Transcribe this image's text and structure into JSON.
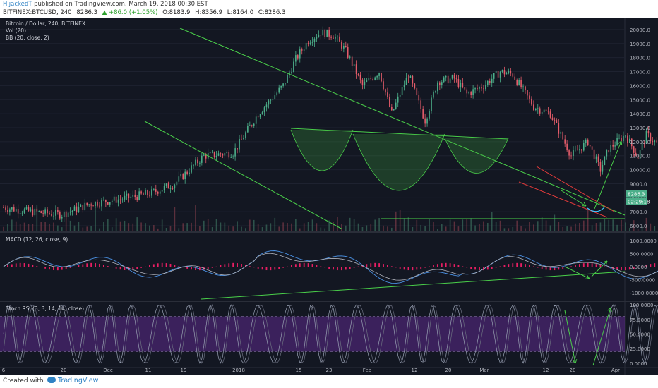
{
  "header": {
    "author": "HijackedT",
    "published": "published on TradingView.com, March 19, 2018 00:30 EST",
    "symbol": "BITFINEX:BTCUSD, 240",
    "price": "8286.3",
    "change": "▲ +86.0 (+1.05%)",
    "open": "O:8183.9",
    "high": "H:8356.9",
    "low": "L:8164.0",
    "close": "C:8286.3"
  },
  "footer": {
    "created_with": "Created with",
    "brand": "TradingView"
  },
  "chart_data": {
    "type": "line",
    "panes": [
      {
        "name": "price",
        "legend": [
          "Bitcoin / Dollar, 240, BITFINEX",
          "Vol (20)",
          "BB (20, close, 2)"
        ],
        "ylim": [
          5600,
          20600
        ],
        "y_ticks": [
          "20000.0",
          "19000.0",
          "18000.0",
          "17000.0",
          "16000.0",
          "15000.0",
          "14000.0",
          "13000.0",
          "12000.0",
          "11000.0",
          "10000.0",
          "9000.0",
          "8000.0",
          "7000.0",
          "6000.0"
        ],
        "series": [
          {
            "color": "#e45c6a",
            "x": [
              0,
              7,
              14,
              21,
              28,
              35,
              41,
              48,
              55,
              61,
              67,
              70,
              73,
              76,
              79,
              82,
              86,
              90,
              93,
              97,
              101,
              104,
              108,
              111,
              115,
              119,
              122,
              127,
              131,
              136,
              140,
              143,
              145,
              149,
              152,
              154,
              158,
              162,
              166,
              170,
              175,
              180,
              184,
              189,
              194,
              199,
              203,
              206,
              210
            ],
            "y": [
              7300,
              7000,
              6800,
              7600,
              7900,
              8300,
              9000,
              11000,
              11200,
              14000,
              16000,
              17900,
              19200,
              19800,
              19600,
              18500,
              16000,
              17000,
              14000,
              16800,
              13500,
              16300,
              16500,
              15400,
              16000,
              17000,
              16800,
              14500,
              14000,
              11000,
              12000,
              10000,
              11500,
              12500,
              10900,
              12500,
              11500,
              11000,
              9700,
              8000,
              6500,
              6000,
              7500,
              8900,
              8400,
              9000,
              10000,
              11300,
              11800
            ]
          }
        ],
        "price_badges": [
          "8286.3",
          "02:29:18"
        ]
      },
      {
        "name": "macd",
        "legend": [
          "MACD (12, 26, close, 9)"
        ],
        "ylim": [
          -1300,
          1300
        ],
        "y_ticks": [
          "1000.0000",
          "500.0000",
          "0.0000",
          "-500.0000",
          "-1000.0000"
        ]
      },
      {
        "name": "stoch_rsi",
        "legend": [
          "Stoch RSI (3, 3, 14, 14, close)"
        ],
        "ylim": [
          -5,
          105
        ],
        "y_ticks": [
          "100.0000",
          "75.0000",
          "50.0000",
          "25.0000",
          "0.0000"
        ]
      }
    ],
    "x_ticks": [
      "6",
      "20",
      "Dec",
      "11",
      "19",
      "2018",
      "15",
      "23",
      "Feb",
      "12",
      "20",
      "Mar",
      "12",
      "20",
      "Apr"
    ],
    "colors": {
      "background": "#131722",
      "up": "#4caf8a",
      "down": "#e45c6a",
      "trendline": "#4ad04a",
      "macd_hist": "#e91e63",
      "stoch_band": "#5d2a8c"
    }
  }
}
